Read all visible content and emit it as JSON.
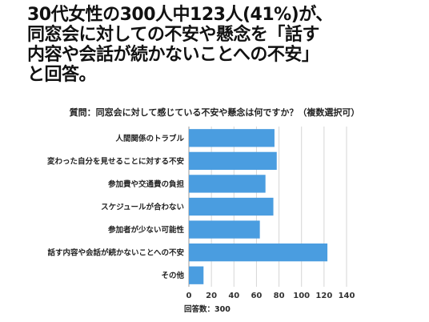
{
  "headline": {
    "lines": [
      "30代女性の300人中123人(41%)が、",
      "同窓会に対しての不安や懸念を「話す",
      "内容や会話が続かないことへの不安」",
      "と回答。"
    ]
  },
  "chart_data": {
    "type": "bar",
    "orientation": "horizontal",
    "title": "質問：同窓会に対して感じている不安や懸念は何ですか？（複数選択可）",
    "categories": [
      "人間関係のトラブル",
      "変わった自分を見せることに対する不安",
      "参加費や交通費の負担",
      "スケジュールが合わない",
      "参加者が少ない可能性",
      "話す内容や会話が続かないことへの不安",
      "その他"
    ],
    "values": [
      76,
      78,
      68,
      75,
      63,
      123,
      13
    ],
    "xlim": [
      0,
      140
    ],
    "xticks": [
      0,
      20,
      40,
      60,
      80,
      100,
      120,
      140
    ],
    "grid": true,
    "bar_color": "#4a9de0",
    "footnote": "回答数：300"
  }
}
